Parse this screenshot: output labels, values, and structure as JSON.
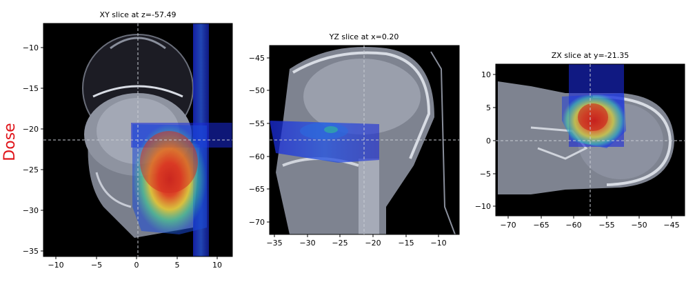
{
  "figure": {
    "side_label": "Dose",
    "side_label_color": "#e0141a",
    "panels": [
      {
        "title": "XY slice at z=-57.49",
        "x_ticks": [
          "−10",
          "−5",
          "0",
          "5",
          "10"
        ],
        "y_ticks": [
          "−10",
          "−15",
          "−20",
          "−25",
          "−30",
          "−35"
        ]
      },
      {
        "title": "YZ slice at x=0.20",
        "x_ticks": [
          "−35",
          "−30",
          "−25",
          "−20",
          "−15",
          "−10"
        ],
        "y_ticks": [
          "−45",
          "−50",
          "−55",
          "−60",
          "−65",
          "−70"
        ]
      },
      {
        "title": "ZX slice at y=-21.35",
        "x_ticks": [
          "−70",
          "−65",
          "−60",
          "−55",
          "−50",
          "−45"
        ],
        "y_ticks": [
          "10",
          "5",
          "0",
          "−5",
          "−10"
        ]
      }
    ]
  }
}
